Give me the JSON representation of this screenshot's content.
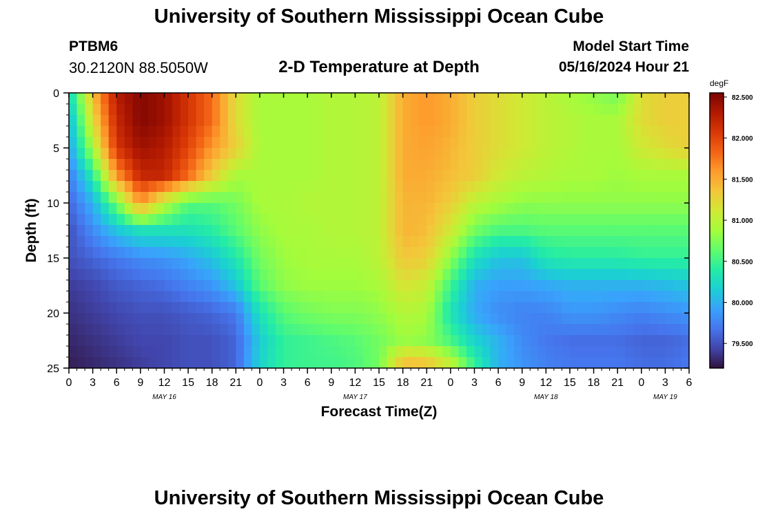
{
  "header": {
    "title": "University of Southern Mississippi Ocean Cube",
    "station_id": "PTBM6",
    "station_coords": "30.2120N  88.5050W",
    "plot_title": "2-D Temperature at Depth",
    "model_start_label": "Model Start Time",
    "model_start_value": "05/16/2024 Hour 21"
  },
  "footer": {
    "title": "University of Southern Mississippi Ocean Cube"
  },
  "chart_data": {
    "type": "heatmap",
    "title": "2-D Temperature at Depth",
    "xlabel": "Forecast Time(Z)",
    "ylabel": "Depth (ft)",
    "x_range_hours": [
      0,
      78
    ],
    "ylim": [
      0,
      25
    ],
    "x_ticks": [
      {
        "hour": 0,
        "label": "0"
      },
      {
        "hour": 3,
        "label": "3"
      },
      {
        "hour": 6,
        "label": "6"
      },
      {
        "hour": 9,
        "label": "9"
      },
      {
        "hour": 12,
        "label": "12"
      },
      {
        "hour": 15,
        "label": "15"
      },
      {
        "hour": 18,
        "label": "18"
      },
      {
        "hour": 21,
        "label": "21"
      },
      {
        "hour": 24,
        "label": "0"
      },
      {
        "hour": 27,
        "label": "3"
      },
      {
        "hour": 30,
        "label": "6"
      },
      {
        "hour": 33,
        "label": "9"
      },
      {
        "hour": 36,
        "label": "12"
      },
      {
        "hour": 39,
        "label": "15"
      },
      {
        "hour": 42,
        "label": "18"
      },
      {
        "hour": 45,
        "label": "21"
      },
      {
        "hour": 48,
        "label": "0"
      },
      {
        "hour": 51,
        "label": "3"
      },
      {
        "hour": 54,
        "label": "6"
      },
      {
        "hour": 57,
        "label": "9"
      },
      {
        "hour": 60,
        "label": "12"
      },
      {
        "hour": 63,
        "label": "15"
      },
      {
        "hour": 66,
        "label": "18"
      },
      {
        "hour": 69,
        "label": "21"
      },
      {
        "hour": 72,
        "label": "0"
      },
      {
        "hour": 75,
        "label": "3"
      },
      {
        "hour": 78,
        "label": "6"
      }
    ],
    "date_labels": [
      {
        "hour": 12,
        "label": "MAY 16"
      },
      {
        "hour": 36,
        "label": "MAY 17"
      },
      {
        "hour": 60,
        "label": "MAY 18"
      },
      {
        "hour": 75,
        "label": "MAY 19"
      }
    ],
    "y_ticks": [
      0,
      5,
      10,
      15,
      20,
      25
    ],
    "colorbar": {
      "unit": "degF",
      "min": 79.2,
      "max": 82.55,
      "ticks": [
        "82.500",
        "82.000",
        "81.500",
        "81.000",
        "80.500",
        "80.000",
        "79.500"
      ],
      "colors": [
        "#30123b",
        "#4145ab",
        "#4675ed",
        "#39a2fc",
        "#1bcfd4",
        "#24eca6",
        "#61fc6c",
        "#a4fc3b",
        "#d1e834",
        "#f3c63a",
        "#fe9b2d",
        "#f36315",
        "#d93806",
        "#b11901",
        "#7a0402"
      ]
    },
    "grid_depths_ft": [
      0,
      2.5,
      5,
      7.5,
      10,
      12.5,
      15,
      17.5,
      20,
      22.5,
      25
    ],
    "grid_hours": [
      0,
      3,
      6,
      9,
      12,
      15,
      18,
      21,
      24,
      27,
      30,
      33,
      36,
      39,
      42,
      45,
      48,
      51,
      54,
      57,
      60,
      63,
      66,
      69,
      72,
      75,
      78
    ],
    "temperature_degF": [
      [
        80.2,
        81.4,
        82.3,
        82.5,
        82.4,
        82.1,
        81.8,
        81.2,
        80.9,
        80.9,
        80.9,
        80.95,
        80.95,
        81.0,
        81.5,
        81.6,
        81.5,
        81.3,
        81.2,
        81.1,
        81.0,
        80.9,
        80.8,
        80.7,
        81.2,
        81.3,
        81.3
      ],
      [
        80.0,
        81.2,
        82.2,
        82.5,
        82.4,
        82.1,
        81.8,
        81.2,
        80.9,
        80.9,
        80.9,
        80.95,
        80.95,
        81.0,
        81.5,
        81.6,
        81.5,
        81.3,
        81.2,
        81.1,
        81.0,
        80.95,
        80.9,
        80.9,
        81.2,
        81.3,
        81.3
      ],
      [
        79.9,
        80.9,
        82.1,
        82.4,
        82.3,
        82.0,
        81.6,
        81.3,
        80.9,
        80.9,
        80.9,
        80.95,
        80.95,
        81.0,
        81.5,
        81.55,
        81.45,
        81.3,
        81.2,
        81.1,
        81.0,
        80.95,
        80.9,
        80.9,
        81.1,
        81.2,
        81.3
      ],
      [
        79.7,
        80.4,
        81.6,
        82.2,
        82.2,
        81.8,
        81.3,
        80.9,
        80.9,
        80.9,
        80.9,
        80.95,
        80.95,
        81.0,
        81.5,
        81.5,
        81.4,
        81.3,
        81.1,
        81.0,
        80.95,
        80.9,
        80.9,
        80.85,
        80.9,
        80.9,
        80.9
      ],
      [
        79.6,
        80.0,
        80.7,
        81.6,
        81.0,
        80.6,
        80.6,
        80.7,
        80.9,
        80.9,
        80.95,
        80.95,
        80.95,
        81.0,
        81.45,
        81.45,
        81.3,
        81.0,
        80.9,
        80.8,
        80.8,
        80.8,
        80.8,
        80.8,
        80.8,
        80.8,
        80.8
      ],
      [
        79.5,
        79.8,
        80.1,
        80.3,
        80.3,
        80.3,
        80.4,
        80.6,
        80.8,
        80.9,
        80.9,
        80.95,
        80.95,
        81.0,
        81.45,
        81.4,
        81.1,
        80.7,
        80.55,
        80.55,
        80.6,
        80.6,
        80.6,
        80.6,
        80.6,
        80.6,
        80.6
      ],
      [
        79.5,
        79.6,
        79.7,
        79.8,
        79.85,
        79.95,
        80.1,
        80.35,
        80.7,
        80.85,
        80.9,
        80.9,
        80.9,
        81.0,
        81.35,
        81.3,
        80.8,
        80.3,
        80.1,
        80.1,
        80.35,
        80.4,
        80.4,
        80.4,
        80.45,
        80.45,
        80.45
      ],
      [
        79.4,
        79.45,
        79.55,
        79.6,
        79.65,
        79.75,
        79.85,
        80.1,
        80.6,
        80.8,
        80.85,
        80.85,
        80.85,
        80.9,
        81.15,
        81.05,
        80.5,
        80.0,
        79.9,
        79.9,
        79.95,
        80.0,
        80.0,
        80.0,
        80.0,
        80.05,
        80.1
      ],
      [
        79.35,
        79.4,
        79.45,
        79.5,
        79.5,
        79.55,
        79.6,
        79.7,
        80.3,
        80.6,
        80.7,
        80.75,
        80.75,
        80.8,
        80.95,
        80.9,
        80.3,
        79.95,
        79.8,
        79.75,
        79.75,
        79.85,
        79.85,
        79.8,
        79.75,
        79.8,
        79.85
      ],
      [
        79.3,
        79.35,
        79.4,
        79.45,
        79.45,
        79.5,
        79.5,
        79.6,
        80.15,
        80.45,
        80.5,
        80.55,
        80.6,
        80.7,
        80.85,
        80.8,
        80.55,
        80.2,
        80.0,
        79.8,
        79.7,
        79.65,
        79.65,
        79.65,
        79.6,
        79.6,
        79.65
      ],
      [
        79.25,
        79.3,
        79.35,
        79.4,
        79.45,
        79.5,
        79.5,
        79.6,
        80.2,
        80.45,
        80.5,
        80.5,
        80.55,
        80.7,
        81.5,
        81.45,
        81.1,
        80.5,
        80.0,
        79.85,
        79.75,
        79.7,
        79.7,
        79.7,
        79.65,
        79.65,
        79.7
      ]
    ]
  }
}
